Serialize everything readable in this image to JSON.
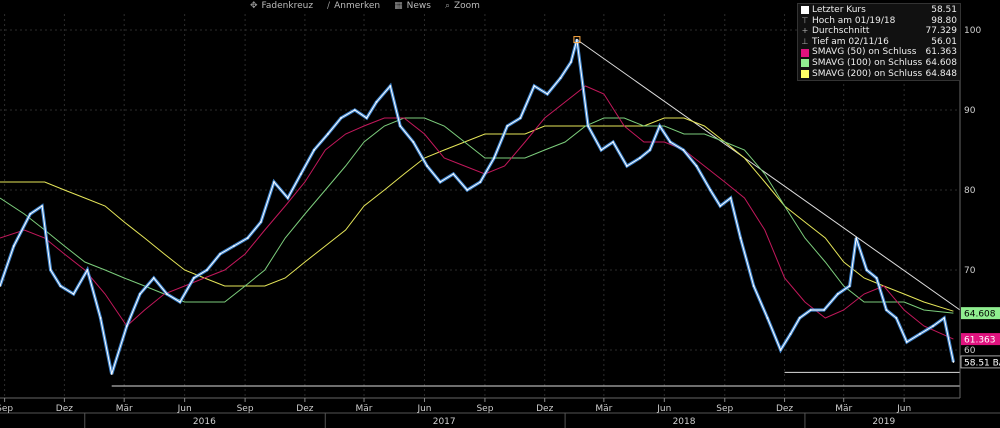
{
  "toolbar": {
    "items": [
      {
        "label": "Fadenkreuz",
        "icon": "crosshair-icon",
        "glyph": "✥"
      },
      {
        "label": "Anmerken",
        "icon": "pencil-icon",
        "glyph": "∕"
      },
      {
        "label": "News",
        "icon": "news-icon",
        "glyph": "▦"
      },
      {
        "label": "Zoom",
        "icon": "magnifier-icon",
        "glyph": "⌕"
      }
    ]
  },
  "legend": {
    "rows": [
      {
        "label": "Letzter Kurs",
        "value": "58.51",
        "swatch": "#ffffff",
        "glyph": ""
      },
      {
        "label": "Hoch am 01/19/18",
        "value": "98.80",
        "swatch": "",
        "glyph": "⊤"
      },
      {
        "label": "Durchschnitt",
        "value": "77.329",
        "swatch": "",
        "glyph": "+"
      },
      {
        "label": "Tief am 02/11/16",
        "value": "56.01",
        "swatch": "",
        "glyph": "⊥"
      },
      {
        "label": "SMAVG (50)  on Schluss",
        "value": "61.363",
        "swatch": "#e0137f",
        "glyph": ""
      },
      {
        "label": "SMAVG (100)  on Schluss",
        "value": "64.608",
        "swatch": "#90ee90",
        "glyph": ""
      },
      {
        "label": "SMAVG (200)  on Schluss",
        "value": "64.848",
        "swatch": "#ffff66",
        "glyph": ""
      }
    ]
  },
  "tags": [
    {
      "text": "64.608",
      "value": 64.608,
      "bg": "#90ee90",
      "fg": "#000000"
    },
    {
      "text": "61.363",
      "value": 61.363,
      "bg": "#e0137f",
      "fg": "#ffffff"
    },
    {
      "text": "58.51 BA",
      "value": 58.51,
      "bg": "#000000",
      "fg": "#ffffff"
    }
  ],
  "chart_data": {
    "type": "line",
    "ylim": [
      54,
      102
    ],
    "xlim": [
      "2015-08-25",
      "2019-08-25"
    ],
    "y_ticks": [
      60,
      70,
      80,
      90,
      100
    ],
    "x_ticks": [
      {
        "date": "2015-09-01",
        "label": "Sep"
      },
      {
        "date": "2015-12-01",
        "label": "Dez"
      },
      {
        "date": "2016-03-01",
        "label": "Mär"
      },
      {
        "date": "2016-06-01",
        "label": "Jun"
      },
      {
        "date": "2016-09-01",
        "label": "Sep"
      },
      {
        "date": "2016-12-01",
        "label": "Dez"
      },
      {
        "date": "2017-03-01",
        "label": "Mär"
      },
      {
        "date": "2017-06-01",
        "label": "Jun"
      },
      {
        "date": "2017-09-01",
        "label": "Sep"
      },
      {
        "date": "2017-12-01",
        "label": "Dez"
      },
      {
        "date": "2018-03-01",
        "label": "Mär"
      },
      {
        "date": "2018-06-01",
        "label": "Jun"
      },
      {
        "date": "2018-09-01",
        "label": "Sep"
      },
      {
        "date": "2018-12-01",
        "label": "Dez"
      },
      {
        "date": "2019-03-01",
        "label": "Mär"
      },
      {
        "date": "2019-06-01",
        "label": "Jun"
      }
    ],
    "year_labels": [
      {
        "date": "2016-07-01",
        "label": "2016"
      },
      {
        "date": "2017-07-01",
        "label": "2017"
      },
      {
        "date": "2018-07-01",
        "label": "2018"
      },
      {
        "date": "2019-05-01",
        "label": "2019"
      }
    ],
    "year_dividers": [
      "2016-01-01",
      "2017-01-01",
      "2018-01-01",
      "2019-01-01"
    ],
    "series": [
      {
        "name": "Letzter Kurs",
        "color": "#4a9bf0",
        "x": [
          "2015-08-25",
          "2015-09-15",
          "2015-10-10",
          "2015-10-28",
          "2015-11-10",
          "2015-11-25",
          "2015-12-15",
          "2016-01-05",
          "2016-01-25",
          "2016-02-11",
          "2016-03-05",
          "2016-03-25",
          "2016-04-15",
          "2016-05-05",
          "2016-05-25",
          "2016-06-15",
          "2016-07-05",
          "2016-07-25",
          "2016-08-15",
          "2016-09-05",
          "2016-09-25",
          "2016-10-15",
          "2016-11-05",
          "2016-11-25",
          "2016-12-15",
          "2017-01-05",
          "2017-01-25",
          "2017-02-15",
          "2017-03-05",
          "2017-03-20",
          "2017-04-10",
          "2017-04-25",
          "2017-05-15",
          "2017-06-05",
          "2017-06-25",
          "2017-07-15",
          "2017-08-05",
          "2017-08-25",
          "2017-09-15",
          "2017-10-05",
          "2017-10-25",
          "2017-11-15",
          "2017-12-05",
          "2017-12-25",
          "2018-01-10",
          "2018-01-19",
          "2018-02-05",
          "2018-02-25",
          "2018-03-15",
          "2018-04-05",
          "2018-04-25",
          "2018-05-10",
          "2018-05-25",
          "2018-06-10",
          "2018-06-30",
          "2018-07-20",
          "2018-08-10",
          "2018-08-25",
          "2018-09-10",
          "2018-09-25",
          "2018-10-15",
          "2018-11-05",
          "2018-11-25",
          "2018-12-10",
          "2018-12-24",
          "2019-01-10",
          "2019-01-30",
          "2019-02-20",
          "2019-03-10",
          "2019-03-20",
          "2019-04-05",
          "2019-04-20",
          "2019-05-05",
          "2019-05-20",
          "2019-06-05",
          "2019-06-25",
          "2019-07-15",
          "2019-08-01",
          "2019-08-15"
        ],
        "values": [
          68,
          73,
          77,
          78,
          70,
          68,
          67,
          70,
          64,
          57,
          63,
          67,
          69,
          67,
          66,
          69,
          70,
          72,
          73,
          74,
          76,
          81,
          79,
          82,
          85,
          87,
          89,
          90,
          89,
          91,
          93,
          88,
          86,
          83,
          81,
          82,
          80,
          81,
          84,
          88,
          89,
          93,
          92,
          94,
          96,
          98.8,
          88,
          85,
          86,
          83,
          84,
          85,
          88,
          86,
          85,
          83,
          80,
          78,
          79,
          74,
          68,
          64,
          60,
          62,
          64,
          65,
          65,
          67,
          68,
          74,
          70,
          69,
          65,
          64,
          61,
          62,
          63,
          64,
          58.51
        ]
      },
      {
        "name": "SMAVG (50)  on Schluss",
        "color": "#c2185b",
        "x": [
          "2015-08-25",
          "2015-10-01",
          "2015-11-01",
          "2015-12-01",
          "2016-01-01",
          "2016-02-01",
          "2016-03-05",
          "2016-04-01",
          "2016-05-01",
          "2016-06-01",
          "2016-07-01",
          "2016-08-01",
          "2016-09-01",
          "2016-10-01",
          "2016-11-01",
          "2016-12-01",
          "2017-01-01",
          "2017-02-01",
          "2017-03-01",
          "2017-04-01",
          "2017-05-01",
          "2017-06-01",
          "2017-07-01",
          "2017-08-01",
          "2017-09-01",
          "2017-10-01",
          "2017-11-01",
          "2017-12-01",
          "2018-01-01",
          "2018-02-01",
          "2018-03-01",
          "2018-04-01",
          "2018-05-01",
          "2018-06-01",
          "2018-07-01",
          "2018-08-01",
          "2018-09-01",
          "2018-10-01",
          "2018-11-01",
          "2018-12-01",
          "2019-01-01",
          "2019-02-01",
          "2019-03-01",
          "2019-04-01",
          "2019-05-01",
          "2019-06-01",
          "2019-07-01",
          "2019-08-15"
        ],
        "values": [
          74,
          75,
          74,
          72,
          70,
          67,
          63,
          65,
          67,
          68,
          69,
          70,
          72,
          75,
          78,
          81,
          85,
          87,
          88,
          89,
          89,
          87,
          84,
          83,
          82,
          83,
          86,
          89,
          91,
          93,
          92,
          88,
          86,
          86,
          85,
          83,
          81,
          79,
          75,
          69,
          66,
          64,
          65,
          67,
          68,
          65,
          63,
          61.363
        ]
      },
      {
        "name": "SMAVG (100)  on Schluss",
        "color": "#7ccd7c",
        "x": [
          "2015-08-25",
          "2015-10-01",
          "2015-11-01",
          "2015-12-01",
          "2016-01-01",
          "2016-02-01",
          "2016-03-01",
          "2016-04-01",
          "2016-05-01",
          "2016-06-01",
          "2016-07-01",
          "2016-08-01",
          "2016-09-01",
          "2016-10-01",
          "2016-11-01",
          "2016-12-01",
          "2017-01-01",
          "2017-02-01",
          "2017-03-01",
          "2017-04-01",
          "2017-05-01",
          "2017-06-01",
          "2017-07-01",
          "2017-08-01",
          "2017-09-01",
          "2017-10-01",
          "2017-11-01",
          "2017-12-01",
          "2018-01-01",
          "2018-02-01",
          "2018-03-01",
          "2018-04-01",
          "2018-05-01",
          "2018-06-01",
          "2018-07-01",
          "2018-08-01",
          "2018-09-01",
          "2018-10-01",
          "2018-11-01",
          "2018-12-01",
          "2019-01-01",
          "2019-02-01",
          "2019-03-01",
          "2019-04-01",
          "2019-05-01",
          "2019-06-01",
          "2019-07-01",
          "2019-08-15"
        ],
        "values": [
          79,
          77,
          75,
          73,
          71,
          70,
          69,
          68,
          67,
          66,
          66,
          66,
          68,
          70,
          74,
          77,
          80,
          83,
          86,
          88,
          89,
          89,
          88,
          86,
          84,
          84,
          84,
          85,
          86,
          88,
          89,
          89,
          88,
          88,
          87,
          87,
          86,
          85,
          82,
          78,
          74,
          71,
          68,
          66,
          66,
          66,
          65,
          64.608
        ]
      },
      {
        "name": "SMAVG (200)  on Schluss",
        "color": "#e6e659",
        "x": [
          "2015-08-25",
          "2015-10-01",
          "2015-11-01",
          "2015-12-01",
          "2016-01-01",
          "2016-02-01",
          "2016-03-01",
          "2016-04-01",
          "2016-05-01",
          "2016-06-01",
          "2016-07-01",
          "2016-08-01",
          "2016-09-01",
          "2016-10-01",
          "2016-11-01",
          "2016-12-01",
          "2017-01-01",
          "2017-02-01",
          "2017-03-01",
          "2017-04-01",
          "2017-05-01",
          "2017-06-01",
          "2017-07-01",
          "2017-08-01",
          "2017-09-01",
          "2017-10-01",
          "2017-11-01",
          "2017-12-01",
          "2018-01-01",
          "2018-02-01",
          "2018-03-01",
          "2018-04-01",
          "2018-05-01",
          "2018-06-01",
          "2018-07-01",
          "2018-08-01",
          "2018-09-01",
          "2018-10-01",
          "2018-11-01",
          "2018-12-01",
          "2019-01-01",
          "2019-02-01",
          "2019-03-01",
          "2019-04-01",
          "2019-05-01",
          "2019-06-01",
          "2019-07-01",
          "2019-08-15"
        ],
        "values": [
          81,
          81,
          81,
          80,
          79,
          78,
          76,
          74,
          72,
          70,
          69,
          68,
          68,
          68,
          69,
          71,
          73,
          75,
          78,
          80,
          82,
          84,
          85,
          86,
          87,
          87,
          87,
          88,
          88,
          88,
          88,
          88,
          88,
          89,
          89,
          88,
          86,
          84,
          81,
          78,
          76,
          74,
          71,
          69,
          68,
          67,
          66,
          64.848
        ]
      }
    ],
    "trendlines": [
      {
        "x": [
          "2018-01-19",
          "2019-08-25"
        ],
        "values": [
          98.8,
          65
        ],
        "color": "#dddddd"
      }
    ],
    "horizontal_lines": [
      {
        "y": 55.5,
        "from": "2016-02-11",
        "to": "2019-08-25",
        "color": "#dddddd"
      },
      {
        "y": 57.2,
        "from": "2018-12-01",
        "to": "2019-08-25",
        "color": "#dddddd"
      }
    ],
    "markers": [
      {
        "date": "2018-01-19",
        "value": 98.8,
        "color": "#ffaa44"
      }
    ]
  }
}
